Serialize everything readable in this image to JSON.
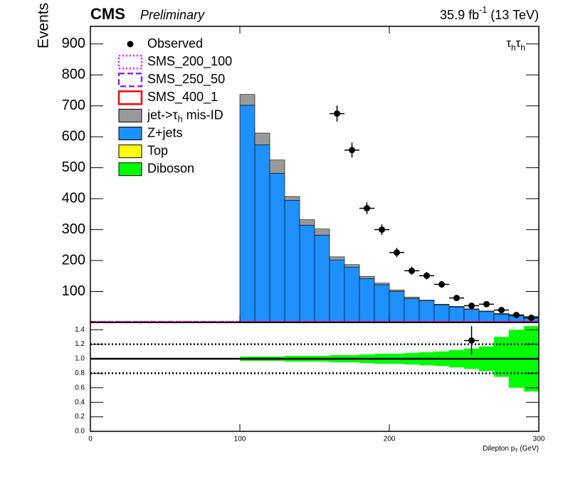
{
  "chart_data": [
    {
      "type": "stacked_histogram",
      "experiment": "CMS",
      "status": "Preliminary",
      "lumi": [
        "35.9 fb",
        "-1",
        " (13 TeV)"
      ],
      "channel": [
        "τ",
        "h",
        "τ",
        "h"
      ],
      "ylabel": "Events",
      "xlim": [
        0,
        300
      ],
      "ylim": [
        0,
        957
      ],
      "yticks": [
        100,
        200,
        300,
        400,
        500,
        600,
        700,
        800,
        900
      ],
      "xticks": [
        0,
        100,
        200,
        300
      ],
      "bins": [
        100,
        110,
        120,
        130,
        140,
        150,
        160,
        170,
        180,
        190,
        200,
        210,
        220,
        230,
        240,
        250,
        260,
        270,
        280,
        290,
        300
      ],
      "observed": {
        "name": "Observed",
        "color": "#000000",
        "xerr": 5,
        "x": [
          165,
          175,
          185,
          195,
          205,
          215,
          225,
          235,
          245,
          255,
          265,
          275,
          285,
          295
        ],
        "values": [
          675,
          557,
          369,
          300,
          226,
          167,
          151,
          123,
          79,
          54,
          59,
          40,
          24,
          15
        ],
        "errors": [
          26,
          24,
          19,
          17,
          15,
          13,
          12,
          11,
          9,
          7,
          8,
          6,
          5,
          4
        ]
      },
      "signals": [
        {
          "name": "SMS_200_100",
          "color": "#ff00ff",
          "style": "dotted",
          "bins": [
            0,
            300
          ],
          "values": [
            3
          ]
        },
        {
          "name": "SMS_250_50",
          "color": "#8a2be2",
          "style": "dashed",
          "bins": [
            0,
            300
          ],
          "values": [
            2
          ]
        },
        {
          "name": "SMS_400_1",
          "color": "#ff0000",
          "style": "solid",
          "bins": [
            0,
            300
          ],
          "values": [
            1
          ]
        }
      ],
      "series": [
        {
          "name": [
            "jet->τ",
            "h",
            " mis-ID"
          ],
          "color": "#999999",
          "values": [
            35,
            38,
            43,
            12,
            18,
            20,
            10,
            8,
            7,
            5,
            5,
            5,
            2,
            2,
            2,
            2,
            2,
            2,
            2,
            2
          ]
        },
        {
          "name": [
            "Z+jets"
          ],
          "color": "#1e90ff",
          "values": [
            700,
            572,
            480,
            393,
            312,
            280,
            200,
            177,
            140,
            120,
            98,
            75,
            68,
            55,
            48,
            40,
            33,
            25,
            20,
            15
          ]
        },
        {
          "name": [
            "Top"
          ],
          "color": "#ffff00",
          "values": [
            1,
            1,
            1,
            1,
            1,
            1,
            1,
            1,
            1,
            1,
            1,
            1,
            1,
            1,
            1,
            1,
            1,
            1,
            1,
            1
          ]
        },
        {
          "name": [
            "Diboson"
          ],
          "color": "#00ff00",
          "values": [
            1,
            1,
            1,
            1,
            1,
            1,
            1,
            1,
            1,
            1,
            1,
            1,
            1,
            1,
            1,
            1,
            1,
            1,
            1,
            1
          ]
        }
      ]
    },
    {
      "type": "ratio",
      "xlabel": [
        "Dilepton p",
        "T",
        " (GeV)"
      ],
      "xlim": [
        0,
        300
      ],
      "xticks": [
        {
          "value": 0,
          "label": "0"
        },
        100,
        200,
        300
      ],
      "ylim": [
        0,
        1.5
      ],
      "yticks": [
        {
          "value": 0,
          "label": "0.0"
        },
        0.2,
        0.4,
        0.6,
        0.8,
        {
          "value": 1,
          "label": "1.0"
        },
        1.2,
        1.4
      ],
      "ref_lines": [
        {
          "value": 1,
          "style": "solid"
        },
        {
          "value": 0.8,
          "style": "dotted"
        },
        {
          "value": 1.2,
          "style": "dotted"
        }
      ],
      "band": {
        "color": "#00ff00",
        "bins": [
          100,
          110,
          120,
          130,
          140,
          150,
          160,
          170,
          180,
          190,
          200,
          210,
          220,
          230,
          240,
          250,
          260,
          270,
          280,
          290,
          300
        ],
        "low": [
          0.97,
          0.97,
          0.97,
          0.96,
          0.96,
          0.96,
          0.95,
          0.95,
          0.94,
          0.93,
          0.93,
          0.92,
          0.91,
          0.9,
          0.88,
          0.86,
          0.83,
          0.75,
          0.6,
          0.55
        ],
        "high": [
          1.03,
          1.03,
          1.03,
          1.04,
          1.04,
          1.04,
          1.05,
          1.05,
          1.06,
          1.07,
          1.07,
          1.08,
          1.09,
          1.1,
          1.12,
          1.14,
          1.17,
          1.3,
          1.4,
          1.45
        ]
      },
      "points": {
        "color": "#000000",
        "xerr": 5,
        "x": [
          255
        ],
        "values": [
          1.25
        ],
        "errors": [
          0.2
        ]
      }
    }
  ]
}
